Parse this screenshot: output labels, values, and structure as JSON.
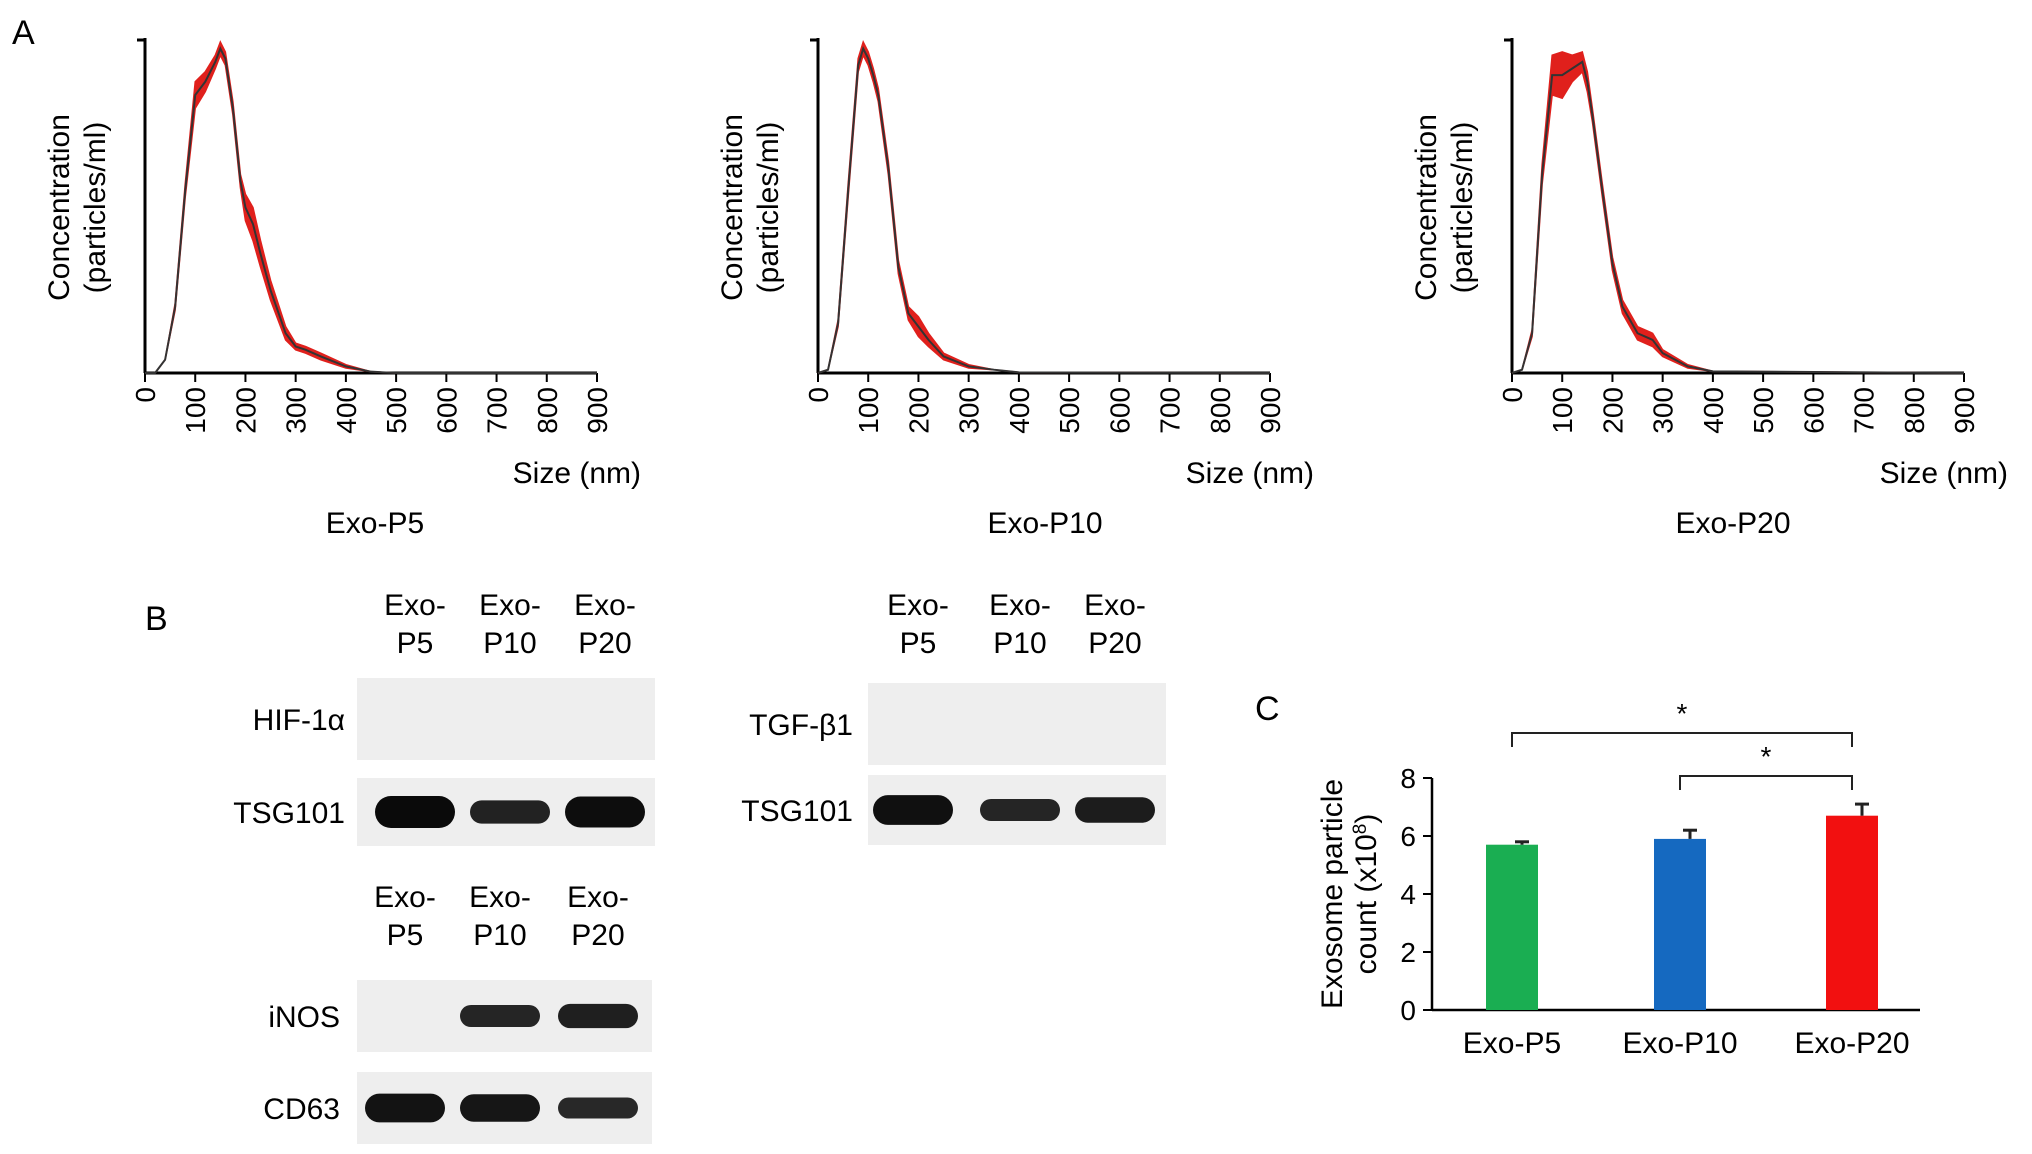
{
  "panels": {
    "a": "A",
    "b": "B",
    "c": "C"
  },
  "chart_data": [
    {
      "type": "area",
      "sample_label": "Exo-P5",
      "xlabel": "Size (nm)",
      "ylabel_lines": [
        "Concentration",
        "(particles/ml)"
      ],
      "xlim": [
        0,
        900
      ],
      "xticks": [
        "0",
        "100",
        "200",
        "300",
        "400",
        "500",
        "600",
        "700",
        "800",
        "900"
      ],
      "ylim": [
        0,
        1
      ],
      "series": [
        {
          "x": [
            0,
            20,
            40,
            60,
            80,
            100,
            120,
            140,
            150,
            160,
            175,
            190,
            200,
            215,
            230,
            250,
            280,
            300,
            320,
            350,
            400,
            450,
            500,
            900
          ],
          "y": [
            0,
            0.0,
            0.04,
            0.2,
            0.55,
            0.84,
            0.88,
            0.94,
            0.98,
            0.95,
            0.8,
            0.58,
            0.5,
            0.45,
            0.36,
            0.25,
            0.12,
            0.08,
            0.07,
            0.05,
            0.02,
            0.004,
            0,
            0
          ],
          "err": [
            0,
            0,
            0,
            0.01,
            0.02,
            0.04,
            0.03,
            0.02,
            0.02,
            0.02,
            0.02,
            0.02,
            0.04,
            0.05,
            0.04,
            0.03,
            0.02,
            0.01,
            0.01,
            0.01,
            0.005,
            0,
            0,
            0
          ]
        }
      ]
    },
    {
      "type": "area",
      "sample_label": "Exo-P10",
      "xlabel": "Size (nm)",
      "ylabel_lines": [
        "Concentration",
        "(particles/ml)"
      ],
      "xlim": [
        0,
        900
      ],
      "xticks": [
        "0",
        "100",
        "200",
        "300",
        "400",
        "500",
        "600",
        "700",
        "800",
        "900"
      ],
      "ylim": [
        0,
        1
      ],
      "series": [
        {
          "x": [
            0,
            20,
            40,
            60,
            80,
            90,
            100,
            110,
            120,
            140,
            160,
            180,
            200,
            220,
            250,
            300,
            350,
            400,
            900
          ],
          "y": [
            0,
            0.01,
            0.15,
            0.55,
            0.93,
            0.98,
            0.95,
            0.9,
            0.84,
            0.62,
            0.32,
            0.18,
            0.14,
            0.1,
            0.05,
            0.02,
            0.01,
            0.002,
            0
          ],
          "err": [
            0,
            0,
            0.01,
            0.02,
            0.02,
            0.02,
            0.02,
            0.02,
            0.02,
            0.02,
            0.02,
            0.02,
            0.03,
            0.02,
            0.01,
            0.005,
            0,
            0,
            0
          ]
        }
      ]
    },
    {
      "type": "area",
      "sample_label": "Exo-P20",
      "xlabel": "Size (nm)",
      "ylabel_lines": [
        "Concentration",
        "(particles/ml)"
      ],
      "xlim": [
        0,
        900
      ],
      "xticks": [
        "0",
        "100",
        "200",
        "300",
        "400",
        "500",
        "600",
        "700",
        "800",
        "900"
      ],
      "ylim": [
        0,
        1
      ],
      "series": [
        {
          "x": [
            0,
            20,
            40,
            60,
            80,
            100,
            120,
            140,
            150,
            160,
            180,
            200,
            220,
            250,
            280,
            300,
            350,
            400,
            900
          ],
          "y": [
            0,
            0.01,
            0.12,
            0.6,
            0.9,
            0.9,
            0.92,
            0.94,
            0.88,
            0.78,
            0.55,
            0.33,
            0.2,
            0.12,
            0.1,
            0.06,
            0.02,
            0.005,
            0
          ],
          "err": [
            0,
            0,
            0.01,
            0.03,
            0.06,
            0.07,
            0.04,
            0.03,
            0.03,
            0.02,
            0.02,
            0.02,
            0.02,
            0.02,
            0.02,
            0.01,
            0.005,
            0,
            0
          ]
        }
      ]
    },
    {
      "type": "bar",
      "categories": [
        "Exo-P5",
        "Exo-P10",
        "Exo-P20"
      ],
      "values": [
        5.7,
        5.9,
        6.7
      ],
      "errors": [
        0.1,
        0.3,
        0.4
      ],
      "colors": [
        "#1aae52",
        "#1569c0",
        "#f21010"
      ],
      "ylabel_lines": [
        "Exosome particle",
        "count (x10",
        "8",
        ")"
      ],
      "ylim": [
        0,
        8
      ],
      "yticks": [
        "0",
        "2",
        "4",
        "6",
        "8"
      ],
      "significance": [
        {
          "from": "Exo-P5",
          "to": "Exo-P20",
          "label": "*"
        },
        {
          "from": "Exo-P10",
          "to": "Exo-P20",
          "label": "*"
        }
      ]
    }
  ],
  "western_blots": [
    {
      "id": "hif",
      "columns": [
        [
          "Exo-",
          "P5"
        ],
        [
          "Exo-",
          "P10"
        ],
        [
          "Exo-",
          "P20"
        ]
      ],
      "rows": [
        {
          "label": "HIF-1α",
          "intensity": [
            0,
            0,
            0
          ]
        },
        {
          "label": "TSG101",
          "intensity": [
            1.0,
            0.6,
            0.95
          ]
        }
      ]
    },
    {
      "id": "tgf",
      "columns": [
        [
          "Exo-",
          "P5"
        ],
        [
          "Exo-",
          "P10"
        ],
        [
          "Exo-",
          "P20"
        ]
      ],
      "rows": [
        {
          "label": "TGF-β1",
          "intensity": [
            0,
            0,
            0
          ]
        },
        {
          "label": "TSG101",
          "intensity": [
            0.9,
            0.55,
            0.7
          ]
        }
      ]
    },
    {
      "id": "inos",
      "columns": [
        [
          "Exo-",
          "P5"
        ],
        [
          "Exo-",
          "P10"
        ],
        [
          "Exo-",
          "P20"
        ]
      ],
      "rows": [
        {
          "label": "iNOS",
          "intensity": [
            0,
            0.55,
            0.65
          ]
        },
        {
          "label": "CD63",
          "intensity": [
            0.85,
            0.8,
            0.5
          ]
        }
      ]
    }
  ],
  "colors": {
    "nta_band": "#e0201c",
    "nta_line": "#333333",
    "axis": "#000000",
    "blot_bg": "#eeeeee"
  }
}
